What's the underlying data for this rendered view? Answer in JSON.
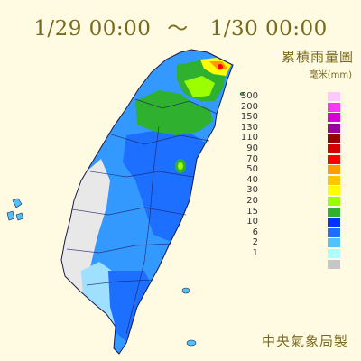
{
  "title": {
    "start": "1/29 00:00",
    "separator": "～",
    "end": "1/30 00:00"
  },
  "legend": {
    "title": "累積雨量圖",
    "unit": "毫米(mm)",
    "items": [
      {
        "label": "300",
        "color": "#ffc6ff"
      },
      {
        "label": "200",
        "color": "#ff33ff"
      },
      {
        "label": "150",
        "color": "#d600d6"
      },
      {
        "label": "130",
        "color": "#9c009c"
      },
      {
        "label": "110",
        "color": "#9b0000"
      },
      {
        "label": "90",
        "color": "#d60000"
      },
      {
        "label": "70",
        "color": "#ff0000"
      },
      {
        "label": "50",
        "color": "#ff9c00"
      },
      {
        "label": "40",
        "color": "#ffc600"
      },
      {
        "label": "30",
        "color": "#ffff00"
      },
      {
        "label": "20",
        "color": "#9bff00"
      },
      {
        "label": "15",
        "color": "#2fb02f"
      },
      {
        "label": "10",
        "color": "#0033ff"
      },
      {
        "label": "6",
        "color": "#1c6fff"
      },
      {
        "label": "2",
        "color": "#4fc3ff"
      },
      {
        "label": "1",
        "color": "#aaffff"
      },
      {
        "label": "",
        "color": "#c6c6c6"
      }
    ]
  },
  "credit": "中央氣象局製",
  "colors": {
    "background": "#fffbe3",
    "text": "#7a6a1e",
    "no_rain": "#e8e8e8",
    "rain_blue_dark": "#1c6fff",
    "rain_blue_mid": "#3399ff",
    "rain_light": "#4fc3ff",
    "rain_green": "#2fb02f",
    "rain_lime": "#9bff00",
    "rain_yellow": "#ffff00",
    "rain_orange": "#ff9c00",
    "rain_red": "#ff0000"
  }
}
